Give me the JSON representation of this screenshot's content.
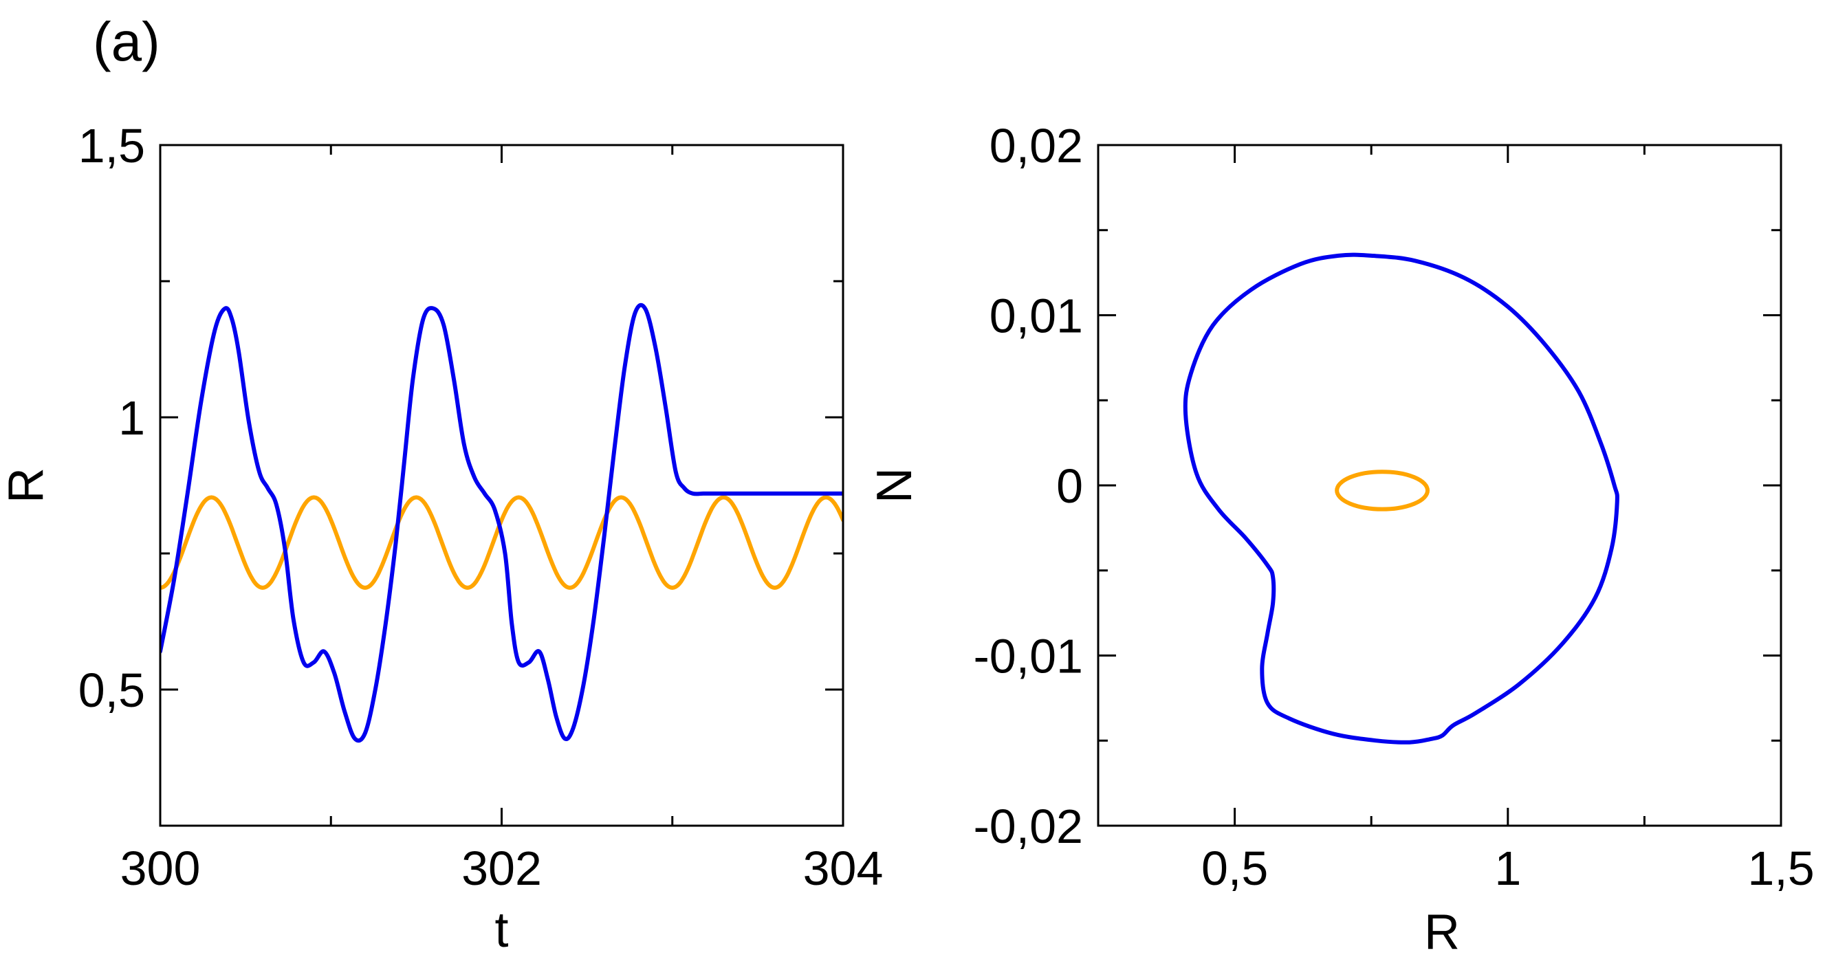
{
  "panel_label": "(a)",
  "colors": {
    "blue": "#0000ee",
    "orange": "#ffa500",
    "axes": "#000000"
  },
  "chart_data": [
    {
      "type": "line",
      "xlabel": "t",
      "ylabel": "R",
      "xlim": [
        300,
        304
      ],
      "ylim": [
        0.25,
        1.5
      ],
      "xtick_values": [
        300,
        302,
        304
      ],
      "xtick_labels": [
        "300",
        "302",
        "304"
      ],
      "ytick_values": [
        0.5,
        1,
        1.5
      ],
      "ytick_labels": [
        "0,5",
        "1",
        "1,5"
      ],
      "grid": false,
      "series": [
        {
          "color": "#0000ee",
          "x": [
            300.0,
            300.08,
            300.16,
            300.24,
            300.32,
            300.38,
            300.42,
            300.46,
            300.52,
            300.58,
            300.63,
            300.68,
            300.73,
            300.78,
            300.84,
            300.9,
            300.96,
            301.02,
            301.08,
            301.14,
            301.2,
            301.26,
            301.32,
            301.38,
            301.43,
            301.48,
            301.54,
            301.6,
            301.66,
            301.72,
            301.78,
            301.84,
            301.9,
            301.96,
            302.02,
            302.06,
            302.1,
            302.16,
            302.22,
            302.27,
            302.32,
            302.37,
            302.42,
            302.48,
            302.54,
            302.6,
            302.66,
            302.72,
            302.78,
            302.84,
            302.9,
            302.96,
            303.02,
            303.07,
            303.12,
            303.18,
            303.24,
            303.3,
            303.36,
            303.42,
            303.48,
            303.54,
            303.6,
            303.66,
            303.7,
            303.74,
            303.8,
            303.86,
            303.92,
            304.0
          ],
          "y": [
            0.57,
            0.7,
            0.86,
            1.03,
            1.16,
            1.2,
            1.18,
            1.12,
            0.99,
            0.9,
            0.87,
            0.84,
            0.76,
            0.63,
            0.55,
            0.55,
            0.57,
            0.53,
            0.46,
            0.41,
            0.42,
            0.5,
            0.62,
            0.77,
            0.92,
            1.07,
            1.18,
            1.2,
            1.17,
            1.07,
            0.95,
            0.89,
            0.86,
            0.83,
            0.75,
            0.62,
            0.55,
            0.55,
            0.57,
            0.52,
            0.45,
            0.41,
            0.43,
            0.51,
            0.63,
            0.78,
            0.94,
            1.09,
            1.19,
            1.2,
            1.13,
            1.02,
            0.9,
            0.87,
            0.86,
            0.86,
            0.86,
            0.86,
            0.86,
            0.86,
            0.86,
            0.86,
            0.86,
            0.86,
            0.86,
            0.86,
            0.86,
            0.86,
            0.86,
            0.86
          ]
        },
        {
          "color": "#ffa500",
          "amplitude": 0.083,
          "mean": 0.77,
          "period": 0.6,
          "first_minimum_t": 300.0
        }
      ]
    },
    {
      "type": "line",
      "xlabel": "R",
      "ylabel": "N",
      "xlim": [
        0.25,
        1.5
      ],
      "ylim": [
        -0.02,
        0.02
      ],
      "xtick_values": [
        0.5,
        1,
        1.5
      ],
      "xtick_labels": [
        "0,5",
        "1",
        "1,5"
      ],
      "ytick_values": [
        -0.02,
        -0.01,
        0,
        0.01,
        0.02
      ],
      "ytick_labels": [
        "-0,02",
        "-0,01",
        "0",
        "0,01",
        "0,02"
      ],
      "grid": false,
      "series": [
        {
          "color": "#0000ee",
          "closed": true,
          "x": [
            0.75,
            0.83,
            0.92,
            1.0,
            1.07,
            1.13,
            1.17,
            1.195,
            1.2,
            1.19,
            1.16,
            1.1,
            1.02,
            0.94,
            0.9,
            0.88,
            0.86,
            0.82,
            0.76,
            0.68,
            0.6,
            0.56,
            0.55,
            0.56,
            0.57,
            0.57,
            0.56,
            0.52,
            0.47,
            0.43,
            0.41,
            0.42,
            0.46,
            0.53,
            0.62,
            0.69
          ],
          "y": [
            0.0135,
            0.0132,
            0.0122,
            0.0105,
            0.0082,
            0.0055,
            0.0025,
            0.0,
            -0.001,
            -0.0037,
            -0.0066,
            -0.0093,
            -0.0117,
            -0.0134,
            -0.0141,
            -0.0147,
            -0.0149,
            -0.0151,
            -0.015,
            -0.0146,
            -0.0137,
            -0.0128,
            -0.0108,
            -0.0087,
            -0.0069,
            -0.0054,
            -0.0047,
            -0.0031,
            -0.0014,
            0.0007,
            0.0042,
            0.0066,
            0.0094,
            0.0115,
            0.013,
            0.0135
          ]
        },
        {
          "color": "#ffa500",
          "center_x": 0.77,
          "center_y": -0.0003,
          "radius_x": 0.083,
          "radius_y": 0.0011
        }
      ]
    }
  ]
}
